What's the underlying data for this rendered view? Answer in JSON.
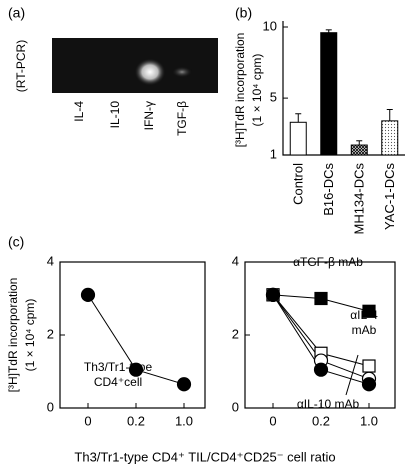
{
  "panel_a": {
    "label": "(a)",
    "method": "(RT-PCR)",
    "lanes": [
      "IL-4",
      "IL-10",
      "IFN-γ",
      "TGF-β"
    ]
  },
  "chart_data": [
    {
      "type": "bar",
      "panel_label": "(b)",
      "y_label": "[³H]TdR incorporation",
      "y_label_2": "(1 × 10⁴ cpm)",
      "categories": [
        "Control",
        "B16-DCs",
        "MH134-DCs",
        "YAC-1-DCs"
      ],
      "values": [
        3.3,
        9.6,
        1.7,
        3.4
      ],
      "errors": [
        0.6,
        0.2,
        0.3,
        0.8
      ],
      "patterns": [
        "none",
        "solid",
        "crosshatch",
        "dots"
      ],
      "ylim": [
        1,
        10
      ],
      "yticks": [
        1,
        5,
        10
      ]
    },
    {
      "type": "line",
      "panel_label": "(c)",
      "y_label": "[³H]TdR incorporation",
      "y_label_2": "(1 × 10⁴ cpm)",
      "x_label": "Th3/Tr1-type CD4⁺ TIL/CD4⁺CD25⁻ cell ratio",
      "categories": [
        "0",
        "0.2",
        "1.0"
      ],
      "series": [
        {
          "marker": "circle",
          "color": "#000",
          "values": [
            3.1,
            1.05,
            0.65
          ]
        }
      ],
      "annotations": [
        "Th3/Tr1-type",
        "CD4⁺cell"
      ],
      "ylim": [
        0,
        4
      ],
      "yticks": [
        0,
        2,
        4
      ]
    },
    {
      "type": "line",
      "categories": [
        "0",
        "0.2",
        "1.0"
      ],
      "series": [
        {
          "marker": "square",
          "color": "#000",
          "values": [
            3.1,
            3.0,
            2.65
          ]
        },
        {
          "marker": "square",
          "color": "#fff",
          "values": [
            3.1,
            1.5,
            1.15
          ]
        },
        {
          "marker": "circle",
          "color": "#fff",
          "values": [
            3.1,
            1.3,
            0.8
          ]
        },
        {
          "marker": "circle",
          "color": "#000",
          "values": [
            3.1,
            1.05,
            0.65
          ]
        }
      ],
      "annotations": [
        "αTGF-β mAb",
        "αIL-4",
        "mAb",
        "αIL-10 mAb"
      ],
      "ylim": [
        0,
        4
      ],
      "yticks": [
        0,
        2,
        4
      ]
    }
  ]
}
